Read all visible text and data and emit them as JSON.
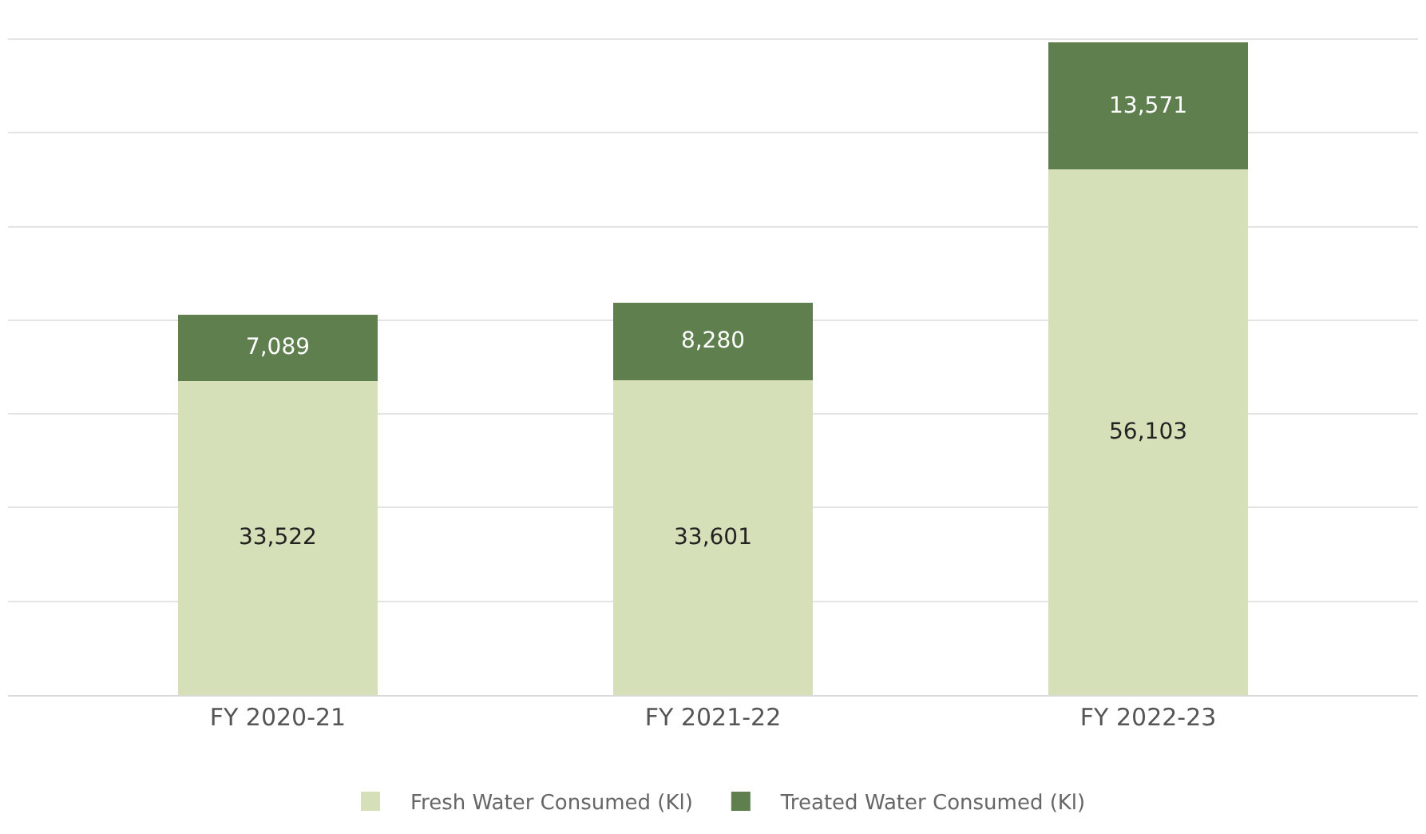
{
  "chart_data": {
    "type": "bar",
    "stacked": true,
    "categories": [
      "FY 2020-21",
      "FY 2021-22",
      "FY 2022-23"
    ],
    "series": [
      {
        "name": "Fresh Water Consumed (Kl)",
        "color": "#d5dfb8",
        "values": [
          33522,
          33601,
          56103
        ],
        "value_labels": [
          "33,522",
          "33,601",
          "56,103"
        ]
      },
      {
        "name": "Treated Water Consumed (Kl)",
        "color": "#5f7f4f",
        "values": [
          7089,
          8280,
          13571
        ],
        "value_labels": [
          "7,089",
          "8,280",
          "13,571"
        ]
      }
    ],
    "grid": "y",
    "legend": "bottom",
    "tick_labels": "x"
  }
}
